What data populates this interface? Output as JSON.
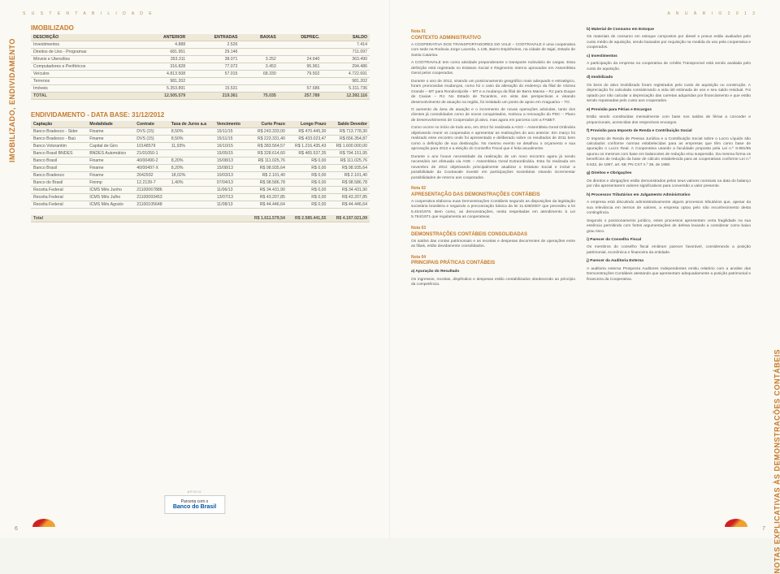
{
  "header": {
    "left": "S U S T E N T A B I L I D A D E",
    "right": "A N U Á R I O   2 0 1 2"
  },
  "sideLabelLeft": "IMOBILIZADO, ENDIVIDAMENTO",
  "sideLabelRight": "NOTAS EXPLICATIVAS ÀS DEMONSTRAÇÕES CONTÁBEIS",
  "imobilizado": {
    "title": "IMOBILIZADO",
    "headers": [
      "DESCRIÇÃO",
      "ANTERIOR",
      "ENTRADAS",
      "BAIXAS",
      "DEPREC.",
      "SALDO"
    ],
    "rows": [
      [
        "Investimentos",
        "4.888",
        "2.526",
        "",
        "",
        "7.414"
      ],
      [
        "Direitos de Uso - Programas",
        "681.951",
        "29.146",
        "",
        "",
        "711.097"
      ],
      [
        "Móveis e Utensílios",
        "353.311",
        "38.071",
        "3.252",
        "24.640",
        "363.490"
      ],
      [
        "Computadores e Periféricos",
        "316.828",
        "77.072",
        "3.453",
        "95.961",
        "294.486"
      ],
      [
        "Veículos",
        "4.813.508",
        "57.015",
        "68.330",
        "79.502",
        "4.722.691"
      ],
      [
        "Terrenos",
        "981.202",
        "",
        "",
        "",
        "981.202"
      ],
      [
        "Imóveis",
        "5.353.891",
        "15.531",
        "",
        "57.686",
        "5.311.736"
      ]
    ],
    "total": [
      "TOTAL",
      "12.505.579",
      "219.361",
      "75.035",
      "257.789",
      "12.392.116"
    ]
  },
  "endiv": {
    "title": "ENDIVIDAMENTO - DATA BASE: 31/12/2012",
    "headers": [
      "Captação",
      "Modalidade",
      "Contrato",
      "Taxa de Juros a.a",
      "Vencimento",
      "Curto Prazo",
      "Longo Prazo",
      "Saldo Devedor"
    ],
    "rows": [
      [
        "Banco Bradesco - Sider",
        "Finame",
        "DVS (15)",
        "8,50%",
        "15/11/15",
        "R$ 243.333,00",
        "R$ 470.445,30",
        "R$ 713.778,30"
      ],
      [
        "Banco Bradesco - Baú",
        "Finame",
        "DVS (15)",
        "8,50%",
        "15/11/15",
        "R$ 223.331,40",
        "R$ 433.023,47",
        "R$ 656.354,87"
      ],
      [
        "Banco Votorantim",
        "Capital de Giro",
        "10148579",
        "11,93%",
        "16/10/15",
        "R$ 383.564,57",
        "R$ 1.216.435,43",
        "R$ 1.600.000,00"
      ],
      [
        "Banco Brasil BNDES",
        "BNDES Automático",
        "21/01050-1",
        "",
        "15/05/15",
        "R$ 328.614,60",
        "R$ 465.537,35",
        "R$ 794.151,95"
      ],
      [
        "Banco Brasil",
        "Finame",
        "40/00490-2",
        "8,20%",
        "15/08/13",
        "R$ 111.025,76",
        "R$ 0,00",
        "R$ 111.025,76"
      ],
      [
        "Banco Brasil",
        "Finame",
        "40/00497-X",
        "8,20%",
        "15/08/13",
        "R$ 98.935,64",
        "R$ 0,00",
        "R$ 98.935,64"
      ],
      [
        "Banco Bradesco",
        "Finame",
        "2642932",
        "18,02%",
        "10/03/13",
        "R$ 2.101,40",
        "R$ 0,00",
        "R$ 2.101,40"
      ],
      [
        "Banco do Brasil",
        "Finimp",
        "12.2139-7",
        "1,40%",
        "07/04/13",
        "R$ 98.586,78",
        "R$ 0,00",
        "R$ 98.586,78"
      ],
      [
        "Receita Federal",
        "ICMS Mês Junho",
        "21100067886",
        "",
        "11/06/13",
        "R$ 34.431,90",
        "R$ 0,00",
        "R$ 34.431,90"
      ],
      [
        "Receita Federal",
        "ICMS Mês Julho",
        "21100093453",
        "",
        "13/07/13",
        "R$ 43.207,85",
        "R$ 0,00",
        "R$ 43.207,85"
      ],
      [
        "Receita Federal",
        "ICMS Mês Agosto",
        "21100105648",
        "",
        "11/08/13",
        "R$ 44.446,64",
        "R$ 0,00",
        "R$ 44.446,64"
      ]
    ],
    "total": [
      "Total",
      "",
      "",
      "",
      "",
      "R$ 1.611.579,54",
      "R$ 2.585.441,55",
      "R$ 4.197.021,09"
    ]
  },
  "apoioLabel": "APOIO",
  "bbLogo": {
    "line1": "Parceria com o",
    "line2": "Banco do Brasil"
  },
  "pageNumLeft": "6",
  "pageNumRight": "7",
  "rightCol1": {
    "nota01n": "Nota 01",
    "nota01t": "CONTEXTO ADMINISTRATIVO",
    "p1": "A COOPERATIVA DOS TRANSPORTADORES DO VALE – COOTRAVALE é uma cooperativa com sede na Rodovia Jorge Lacerda, 1.135, Bairro Espinheiros, na cidade de Itajaí, Estado de Santa Catarina.",
    "p2": "A COOTRAVALE tem como atividade preponderante o transporte rodoviário de cargas. Essa definição está registrada no Estatuto Social e Regimento Interno aprovados em Assembleia Geral pelos cooperados.",
    "p3": "Durante o ano de 2012, visando um posicionamento geográfico mais adequado e estratégico, foram promovidas mudanças, como foi o caso da alteração do endereço da filial de Várzea Grande – MT para Rondonópolis – MT e a mudança da filial de Barra Mansa – RJ para Duque de Caxias – RJ. No Estado de Tocantins, em vista das perspectivas e visando desenvolvimento de atuação na região, foi instalado um ponto de apoio em Araguaína – TO.",
    "p4": "O aumento da área de atuação e o incremento de novas operações advindas, tanto dos clientes já consolidados como de novos conquistados, motivou a renovação do PDC – Plano de Desenvolvimento de Cooperados já ativo, mas agora em parceria com a FABET.",
    "p5": "Como ocorre no início de todo ano, em 2012 foi realizada a AGO – Assembleia Geral Ordinária objetivando reunir os cooperados e apresentar as realizações do ano anterior. Em março foi realizado esse encontro onde foi apresentado e deliberado sobre os resultados de 2011 bem como a definição de sua destinação. No mesmo evento se detalhou o orçamento e sua aprovação para 2012 e a eleição do Conselho Fiscal que é feita anualmente.",
    "p6": "Durante o ano houve necessidade da realização de um novo encontro agora já sendo necessário ser efetuada via AGE – Assembleia Geral Extraordinária. Esta foi realizada em novembro de 2012 objetivando principalmente atualizar o Estatuto Social e incluir a possibilidade da Cootravale investir em participações societárias visando incrementar possibilidades de retorno aos cooperados.",
    "nota02n": "Nota 02",
    "nota02t": "APRESENTAÇÃO DAS DEMONSTRAÇÕES CONTÁBEIS",
    "p7": "A cooperativa elaborou suas Demonstrações Contábeis segundo as disposições da legislação societária brasileira e seguindo a preconização básica da lei 11.638/2007 que precedeu a lei 6.404/1976. Bem como, as demonstrações, nesta respeitadas em atendimento à Lei 5.764/1971 que regulamenta as cooperativas.",
    "nota03n": "Nota 03",
    "nota03t": "DEMONSTRAÇÕES CONTÁBEIS CONSOLIDADAS",
    "p8": "Os saldos das contas patrimoniais e as receitas e despesas decorrentes de operações entre as filiais, estão devidamente consolidados.",
    "nota04n": "Nota 04",
    "nota04t": "PRINCIPAIS PRÁTICAS CONTÁBEIS",
    "apA": "a) Apuração do Resultado",
    "apAt": "Os ingressos, receitas, dispêndios e despesas estão contabilizados obedecendo ao princípio da competência."
  },
  "rightCol2": {
    "b": "b) Material de Consumo em Estoque",
    "bt": "Os materiais de consumo em estoque compostos por diesel e pneus estão avaliados pelo custo médio de aquisição, sendo baixados por requisição na medida do uso pela cooperativa e cooperados.",
    "c": "c) Investimentos",
    "ct": "A participação da empresa na cooperativa de crédito Transpocred está sendo avaliada pelo custo de aquisição.",
    "d": "d) Imobilizado",
    "dt": "Os bens do ativo imobilizado foram registrados pelo custo de aquisição ou construção. A depreciação foi calculada considerando a vida útil estimada de uso e seu saldo residual. Foi optado por não calcular a depreciação das carretas adquiridas por financiamento e que estão sendo repassadas pelo custo aos cooperados.",
    "e": "e) Provisão para Férias e Encargos",
    "et": "Estão sendo constituídas mensalmente com base nos saldos de férias a conceder e proporcionais, acrescidas dos respectivos encargos.",
    "f": "f) Provisão para Imposto de Renda e Contribuição Social",
    "ft": "O Imposto de Renda de Pessoa Jurídica e a Contribuição Social sobre o Lucro Líquido são calculados conforme normas estabelecidas para as empresas que têm como base de apuração o Lucro Real. A Cooperativa usando a faculdade proposta pela Lei n.º 8.981/95 apurou os mesmos com base em balancetes de redução e/ou suspensão. Da mesma forma os benefícios de redução da base de cálculo estabelecida para as cooperativas conforme Lei n.º 9.532, de 1997, art. 69; PN CST n.º 38, de 1980.",
    "g": "g) Direitos e Obrigações",
    "gt": "Os direitos e obrigações estão demonstrados pelos seus valores nominais na data do balanço por não apresentarem valores significativos para conversão a valor presente.",
    "h": "h) Processos Tributários em Julgamento Administrativo",
    "ht1": "A empresa está discutindo administrativamente alguns processos tributários que, apesar da sua relevância em termos de valores, a empresa optou pelo não reconhecimento desta contingência.",
    "ht2": "Segundo o posicionamento jurídico, estes processos apresentam certa fragilidade na sua essência permitindo com fortes argumentações de defesa levando a considerar como baixo grau risco.",
    "i": "i) Parecer do Conselho Fiscal",
    "it": "Os membros do conselho fiscal emitiram parecer favorável, considerando a posição patrimonial, econômica e financeira da entidade.",
    "j": "j) Parecer da Auditoria Externa",
    "jt": "A auditoria externa Prospecta Auditores Independentes emitiu relatório com a analise das Demonstrações Contábeis atestando que apresentam adequadamente a posição patrimonial e financeira da Cooperativa."
  }
}
